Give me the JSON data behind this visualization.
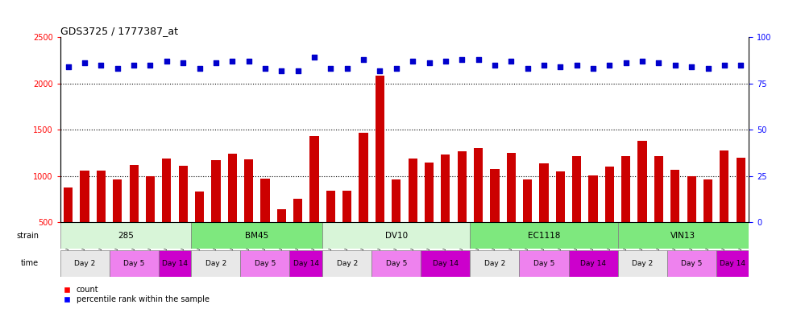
{
  "title": "GDS3725 / 1777387_at",
  "samples": [
    "GSM291115",
    "GSM291116",
    "GSM291117",
    "GSM291140",
    "GSM291141",
    "GSM291142",
    "GSM291000",
    "GSM291001",
    "GSM291462",
    "GSM291523",
    "GSM291524",
    "GSM291555",
    "GSM296856",
    "GSM296857",
    "GSM290992",
    "GSM290993",
    "GSM290989",
    "GSM290990",
    "GSM290991",
    "GSM291538",
    "GSM291539",
    "GSM291540",
    "GSM290994",
    "GSM290995",
    "GSM290996",
    "GSM291435",
    "GSM291439",
    "GSM291445",
    "GSM291554",
    "GSM296858",
    "GSM296859",
    "GSM290997",
    "GSM290998",
    "GSM290901",
    "GSM290902",
    "GSM290903",
    "GSM291525",
    "GSM296860",
    "GSM296861",
    "GSM291002",
    "GSM291003",
    "GSM292045"
  ],
  "counts": [
    880,
    1060,
    1060,
    960,
    1120,
    1000,
    1190,
    1110,
    830,
    1170,
    1240,
    1180,
    970,
    640,
    760,
    1430,
    840,
    840,
    1470,
    2080,
    960,
    1190,
    1150,
    1230,
    1270,
    1300,
    1080,
    1250,
    960,
    1140,
    1050,
    1220,
    1010,
    1100,
    1220,
    1380,
    1220,
    1070,
    1000,
    960,
    1280,
    1200
  ],
  "percentile": [
    84,
    86,
    85,
    83,
    85,
    85,
    87,
    86,
    83,
    86,
    87,
    87,
    83,
    82,
    82,
    89,
    83,
    83,
    88,
    82,
    83,
    87,
    86,
    87,
    88,
    88,
    85,
    87,
    83,
    85,
    84,
    85,
    83,
    85,
    86,
    87,
    86,
    85,
    84,
    83,
    85,
    85
  ],
  "strain_labels": [
    "285",
    "BM45",
    "DV10",
    "EC1118",
    "VIN13"
  ],
  "strain_ranges": [
    [
      0,
      7
    ],
    [
      8,
      15
    ],
    [
      16,
      24
    ],
    [
      25,
      33
    ],
    [
      34,
      41
    ]
  ],
  "strain_colors": [
    "#d8f5d8",
    "#7ee87e",
    "#d8f5d8",
    "#7ee87e",
    "#7ee87e"
  ],
  "time_labels_per_strain": [
    "Day 2",
    "Day 5",
    "Day 14"
  ],
  "time_ranges": [
    [
      0,
      2
    ],
    [
      3,
      5
    ],
    [
      6,
      7
    ],
    [
      8,
      10
    ],
    [
      11,
      13
    ],
    [
      14,
      15
    ],
    [
      16,
      18
    ],
    [
      19,
      21
    ],
    [
      22,
      24
    ],
    [
      25,
      27
    ],
    [
      28,
      30
    ],
    [
      31,
      33
    ],
    [
      34,
      36
    ],
    [
      37,
      39
    ],
    [
      40,
      41
    ]
  ],
  "time_colors": [
    "#e8e8e8",
    "#ee82ee",
    "#cc00cc"
  ],
  "bar_color": "#cc0000",
  "dot_color": "#0000cc",
  "ylim_left": [
    500,
    2500
  ],
  "ylim_right": [
    0,
    100
  ],
  "yticks_left": [
    500,
    1000,
    1500,
    2000,
    2500
  ],
  "yticks_right": [
    0,
    25,
    50,
    75,
    100
  ],
  "grid_values": [
    1000,
    1500,
    2000
  ],
  "background_color": "#ffffff"
}
